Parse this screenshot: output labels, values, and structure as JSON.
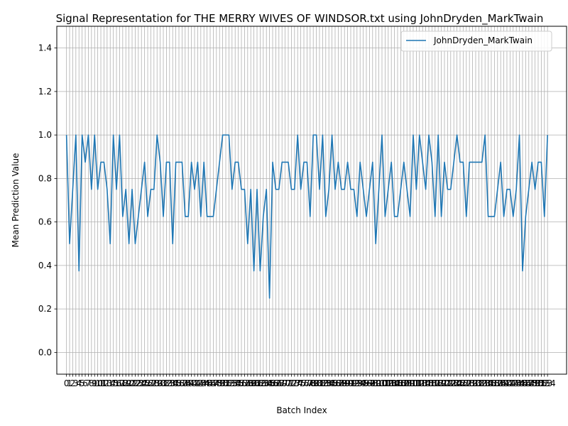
{
  "chart_data": {
    "type": "line",
    "title": "Signal Representation for THE MERRY WIVES OF WINDSOR.txt using JohnDryden_MarkTwain",
    "xlabel": "Batch Index",
    "ylabel": "Mean Prediction Value",
    "xlim": [
      -3.1,
      160.1
    ],
    "ylim": [
      -0.1,
      1.5
    ],
    "yticks": [
      0.0,
      0.2,
      0.4,
      0.6,
      0.8,
      1.0,
      1.2,
      1.4
    ],
    "ytick_labels": [
      "0.0",
      "0.2",
      "0.4",
      "0.6",
      "0.8",
      "1.0",
      "1.2",
      "1.4"
    ],
    "grid": true,
    "legend_position": "upper-right",
    "series": [
      {
        "name": "JohnDryden_MarkTwain",
        "color": "#1f77b4",
        "values": [
          1.0,
          0.5,
          0.75,
          1.0,
          0.375,
          1.0,
          0.875,
          1.0,
          0.75,
          1.0,
          0.75,
          0.875,
          0.875,
          0.75,
          0.5,
          1.0,
          0.75,
          1.0,
          0.625,
          0.75,
          0.5,
          0.75,
          0.5,
          0.625,
          0.75,
          0.875,
          0.625,
          0.75,
          0.75,
          1.0,
          0.875,
          0.625,
          0.875,
          0.875,
          0.5,
          0.875,
          0.875,
          0.875,
          0.625,
          0.625,
          0.875,
          0.75,
          0.875,
          0.625,
          0.875,
          0.625,
          0.625,
          0.625,
          0.75,
          0.875,
          1.0,
          1.0,
          1.0,
          0.75,
          0.875,
          0.875,
          0.75,
          0.75,
          0.5,
          0.75,
          0.375,
          0.75,
          0.375,
          0.625,
          0.75,
          0.25,
          0.875,
          0.75,
          0.75,
          0.875,
          0.875,
          0.875,
          0.75,
          0.75,
          1.0,
          0.75,
          0.875,
          0.875,
          0.625,
          1.0,
          1.0,
          0.75,
          1.0,
          0.625,
          0.75,
          1.0,
          0.75,
          0.875,
          0.75,
          0.75,
          0.875,
          0.75,
          0.75,
          0.625,
          0.875,
          0.75,
          0.625,
          0.75,
          0.875,
          0.5,
          0.75,
          1.0,
          0.625,
          0.75,
          0.875,
          0.625,
          0.625,
          0.75,
          0.875,
          0.75,
          0.625,
          1.0,
          0.75,
          1.0,
          0.875,
          0.75,
          1.0,
          0.875,
          0.625,
          1.0,
          0.625,
          0.875,
          0.75,
          0.75,
          0.875,
          1.0,
          0.875,
          0.875,
          0.625,
          0.875,
          0.875,
          0.875,
          0.875,
          0.875,
          1.0,
          0.625,
          0.625,
          0.625,
          0.75,
          0.875,
          0.625,
          0.75,
          0.75,
          0.625,
          0.75,
          1.0,
          0.375,
          0.625,
          0.75,
          0.875,
          0.75,
          0.875,
          0.875,
          0.625,
          1.0
        ]
      }
    ]
  }
}
